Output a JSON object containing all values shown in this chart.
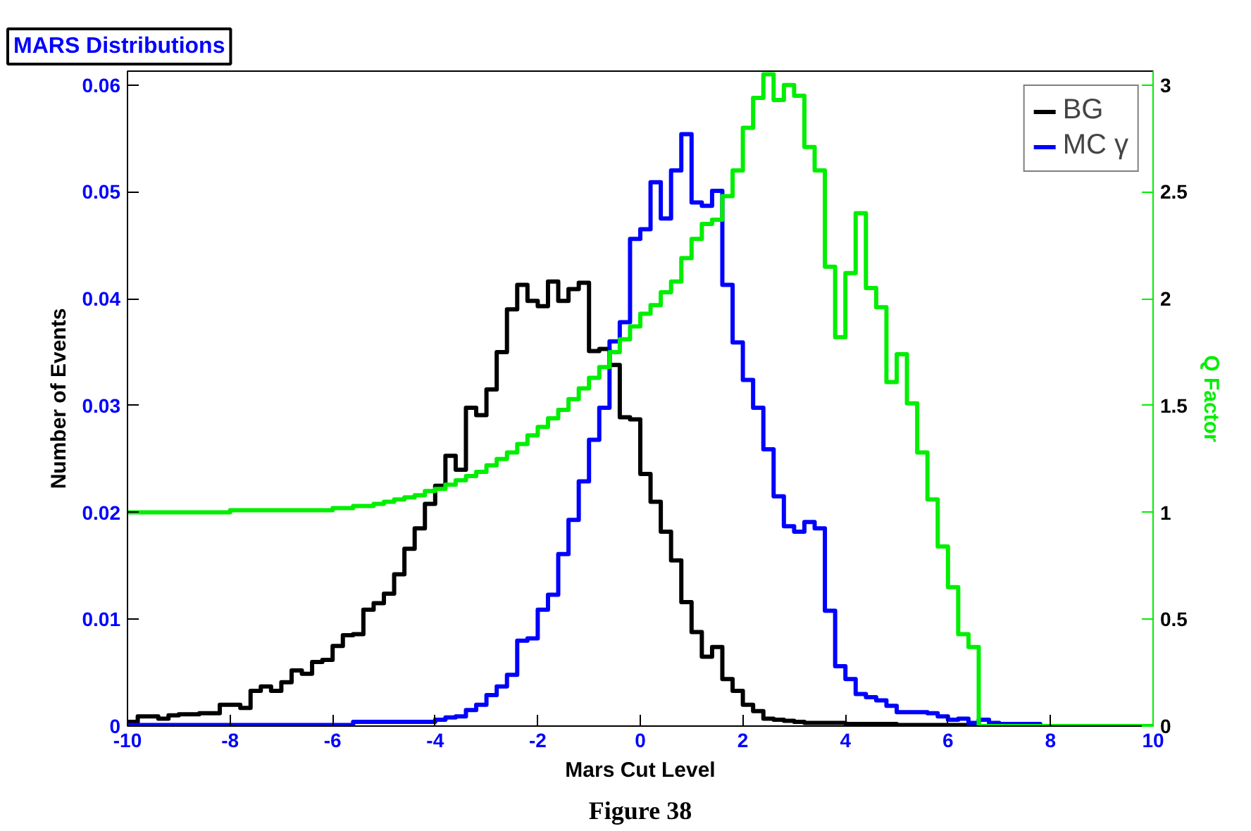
{
  "chart_data": {
    "type": "histogram",
    "title": "MARS Distributions",
    "xlabel": "Mars Cut Level",
    "ylabel": "Number of Events",
    "y2label": "Q Factor",
    "bins": [
      -10,
      -9.8,
      -9.6,
      -9.4,
      -9.2,
      -9,
      -8.8,
      -8.6,
      -8.4,
      -8.2,
      -8,
      -7.8,
      -7.6,
      -7.4,
      -7.2,
      -7,
      -6.8,
      -6.6,
      -6.4,
      -6.2,
      -6,
      -5.8,
      -5.6,
      -5.4,
      -5.2,
      -5,
      -4.8,
      -4.6,
      -4.4,
      -4.2,
      -4,
      -3.8,
      -3.6,
      -3.4,
      -3.2,
      -3,
      -2.8,
      -2.6,
      -2.4,
      -2.2,
      -2,
      -1.8,
      -1.6,
      -1.4,
      -1.2,
      -1,
      -0.8,
      -0.6,
      -0.4,
      -0.2,
      0,
      0.2,
      0.4,
      0.6,
      0.8,
      1,
      1.2,
      1.4,
      1.6,
      1.8,
      2,
      2.2,
      2.4,
      2.6,
      2.8,
      3,
      3.2,
      3.4,
      3.6,
      3.8,
      4,
      4.2,
      4.4,
      4.6,
      4.8,
      5,
      5.2,
      5.4,
      5.6,
      5.8,
      6,
      6.2,
      6.4,
      6.6,
      6.8,
      7,
      7.2,
      7.4,
      7.6,
      7.8,
      8,
      8.2,
      8.4,
      8.6,
      8.8,
      9,
      9.2,
      9.4,
      9.6,
      9.8,
      10
    ],
    "series": [
      {
        "name": "BG",
        "color": "#000000",
        "values": [
          0.0004,
          0.0009,
          0.0009,
          0.0007,
          0.001,
          0.0011,
          0.0011,
          0.0012,
          0.0012,
          0.002,
          0.002,
          0.0017,
          0.0033,
          0.0037,
          0.0033,
          0.0041,
          0.0052,
          0.0049,
          0.006,
          0.0062,
          0.0075,
          0.0085,
          0.0086,
          0.0109,
          0.0115,
          0.0124,
          0.0142,
          0.0166,
          0.0185,
          0.0208,
          0.0225,
          0.0253,
          0.024,
          0.0298,
          0.0291,
          0.0315,
          0.035,
          0.039,
          0.0413,
          0.0398,
          0.0393,
          0.0416,
          0.0398,
          0.0409,
          0.0415,
          0.0351,
          0.0353,
          0.0338,
          0.0289,
          0.0287,
          0.0236,
          0.021,
          0.0182,
          0.0155,
          0.0116,
          0.0088,
          0.0065,
          0.0074,
          0.0044,
          0.0033,
          0.002,
          0.0014,
          0.0007,
          0.0006,
          0.0005,
          0.0004,
          0.0003,
          0.0003,
          0.0003,
          0.0003,
          0.0002,
          0.0002,
          0.0002,
          0.0002,
          0.0002,
          0.0001,
          0.0001,
          0.0001,
          0.0001,
          0.0001,
          0.0001,
          0.0001,
          0.0001,
          0,
          0,
          0,
          0,
          0,
          0,
          0,
          0,
          0,
          0,
          0,
          0,
          0,
          0,
          0,
          0,
          0
        ]
      },
      {
        "name": "MC γ",
        "color": "#0000ff",
        "values": [
          0.0001,
          0.0001,
          0.0001,
          0.0001,
          0.0001,
          0.0001,
          0.0001,
          0.0001,
          0.0001,
          0.0001,
          0.0001,
          0.0001,
          0.0001,
          0.0001,
          0.0001,
          0.0001,
          0.0001,
          0.0001,
          0.0001,
          0.0001,
          0.0001,
          0.0001,
          0.0004,
          0.0004,
          0.0004,
          0.0004,
          0.0004,
          0.0004,
          0.0004,
          0.0004,
          0.0006,
          0.0008,
          0.0009,
          0.0015,
          0.002,
          0.0029,
          0.0037,
          0.0048,
          0.008,
          0.0082,
          0.0109,
          0.0123,
          0.0161,
          0.0193,
          0.0229,
          0.0268,
          0.0298,
          0.036,
          0.0378,
          0.0456,
          0.0465,
          0.0509,
          0.0475,
          0.052,
          0.0554,
          0.049,
          0.0487,
          0.0501,
          0.0413,
          0.0359,
          0.0324,
          0.0298,
          0.0259,
          0.0215,
          0.0187,
          0.0182,
          0.0191,
          0.0185,
          0.0108,
          0.0056,
          0.0044,
          0.003,
          0.0027,
          0.0024,
          0.0019,
          0.0013,
          0.0013,
          0.0013,
          0.0012,
          0.0009,
          0.0006,
          0.0007,
          0.0003,
          0.0006,
          0.0003,
          0.0002,
          0.0002,
          0.0002,
          0.0002,
          0,
          0,
          0,
          0,
          0,
          0,
          0,
          0,
          0,
          0,
          0
        ]
      },
      {
        "color": "#00ee00",
        "axis": "y2",
        "values": [
          1.0,
          1.0,
          1.0,
          1.0,
          1.0,
          1.0,
          1.0,
          1.0,
          1.0,
          1.0,
          1.01,
          1.01,
          1.01,
          1.01,
          1.01,
          1.01,
          1.01,
          1.01,
          1.01,
          1.01,
          1.02,
          1.02,
          1.03,
          1.03,
          1.04,
          1.05,
          1.06,
          1.07,
          1.08,
          1.1,
          1.11,
          1.13,
          1.15,
          1.17,
          1.19,
          1.22,
          1.25,
          1.28,
          1.32,
          1.36,
          1.4,
          1.44,
          1.48,
          1.53,
          1.58,
          1.63,
          1.68,
          1.75,
          1.81,
          1.87,
          1.93,
          1.97,
          2.03,
          2.08,
          2.19,
          2.28,
          2.35,
          2.37,
          2.48,
          2.6,
          2.8,
          2.94,
          3.05,
          2.93,
          3.0,
          2.95,
          2.71,
          2.6,
          2.15,
          1.82,
          2.12,
          2.4,
          2.05,
          1.96,
          1.61,
          1.74,
          1.51,
          1.28,
          1.06,
          0.84,
          0.65,
          0.43,
          0.37,
          0,
          0,
          0,
          0,
          0,
          0,
          0,
          0,
          0,
          0,
          0,
          0,
          0,
          0,
          0,
          0,
          0
        ]
      }
    ],
    "xlim": [
      -10,
      10
    ],
    "xticks": [
      -10,
      -8,
      -6,
      -4,
      -2,
      0,
      2,
      4,
      6,
      8,
      10
    ],
    "ylim": [
      0,
      0.0613
    ],
    "yticks": [
      0,
      0.01,
      0.02,
      0.03,
      0.04,
      0.05,
      0.06
    ],
    "y2lim": [
      0,
      3.065
    ],
    "y2ticks": [
      0,
      0.5,
      1,
      1.5,
      2,
      2.5,
      3
    ],
    "legend": "top right",
    "grid": false,
    "annotations": [
      "Figure 38"
    ]
  }
}
